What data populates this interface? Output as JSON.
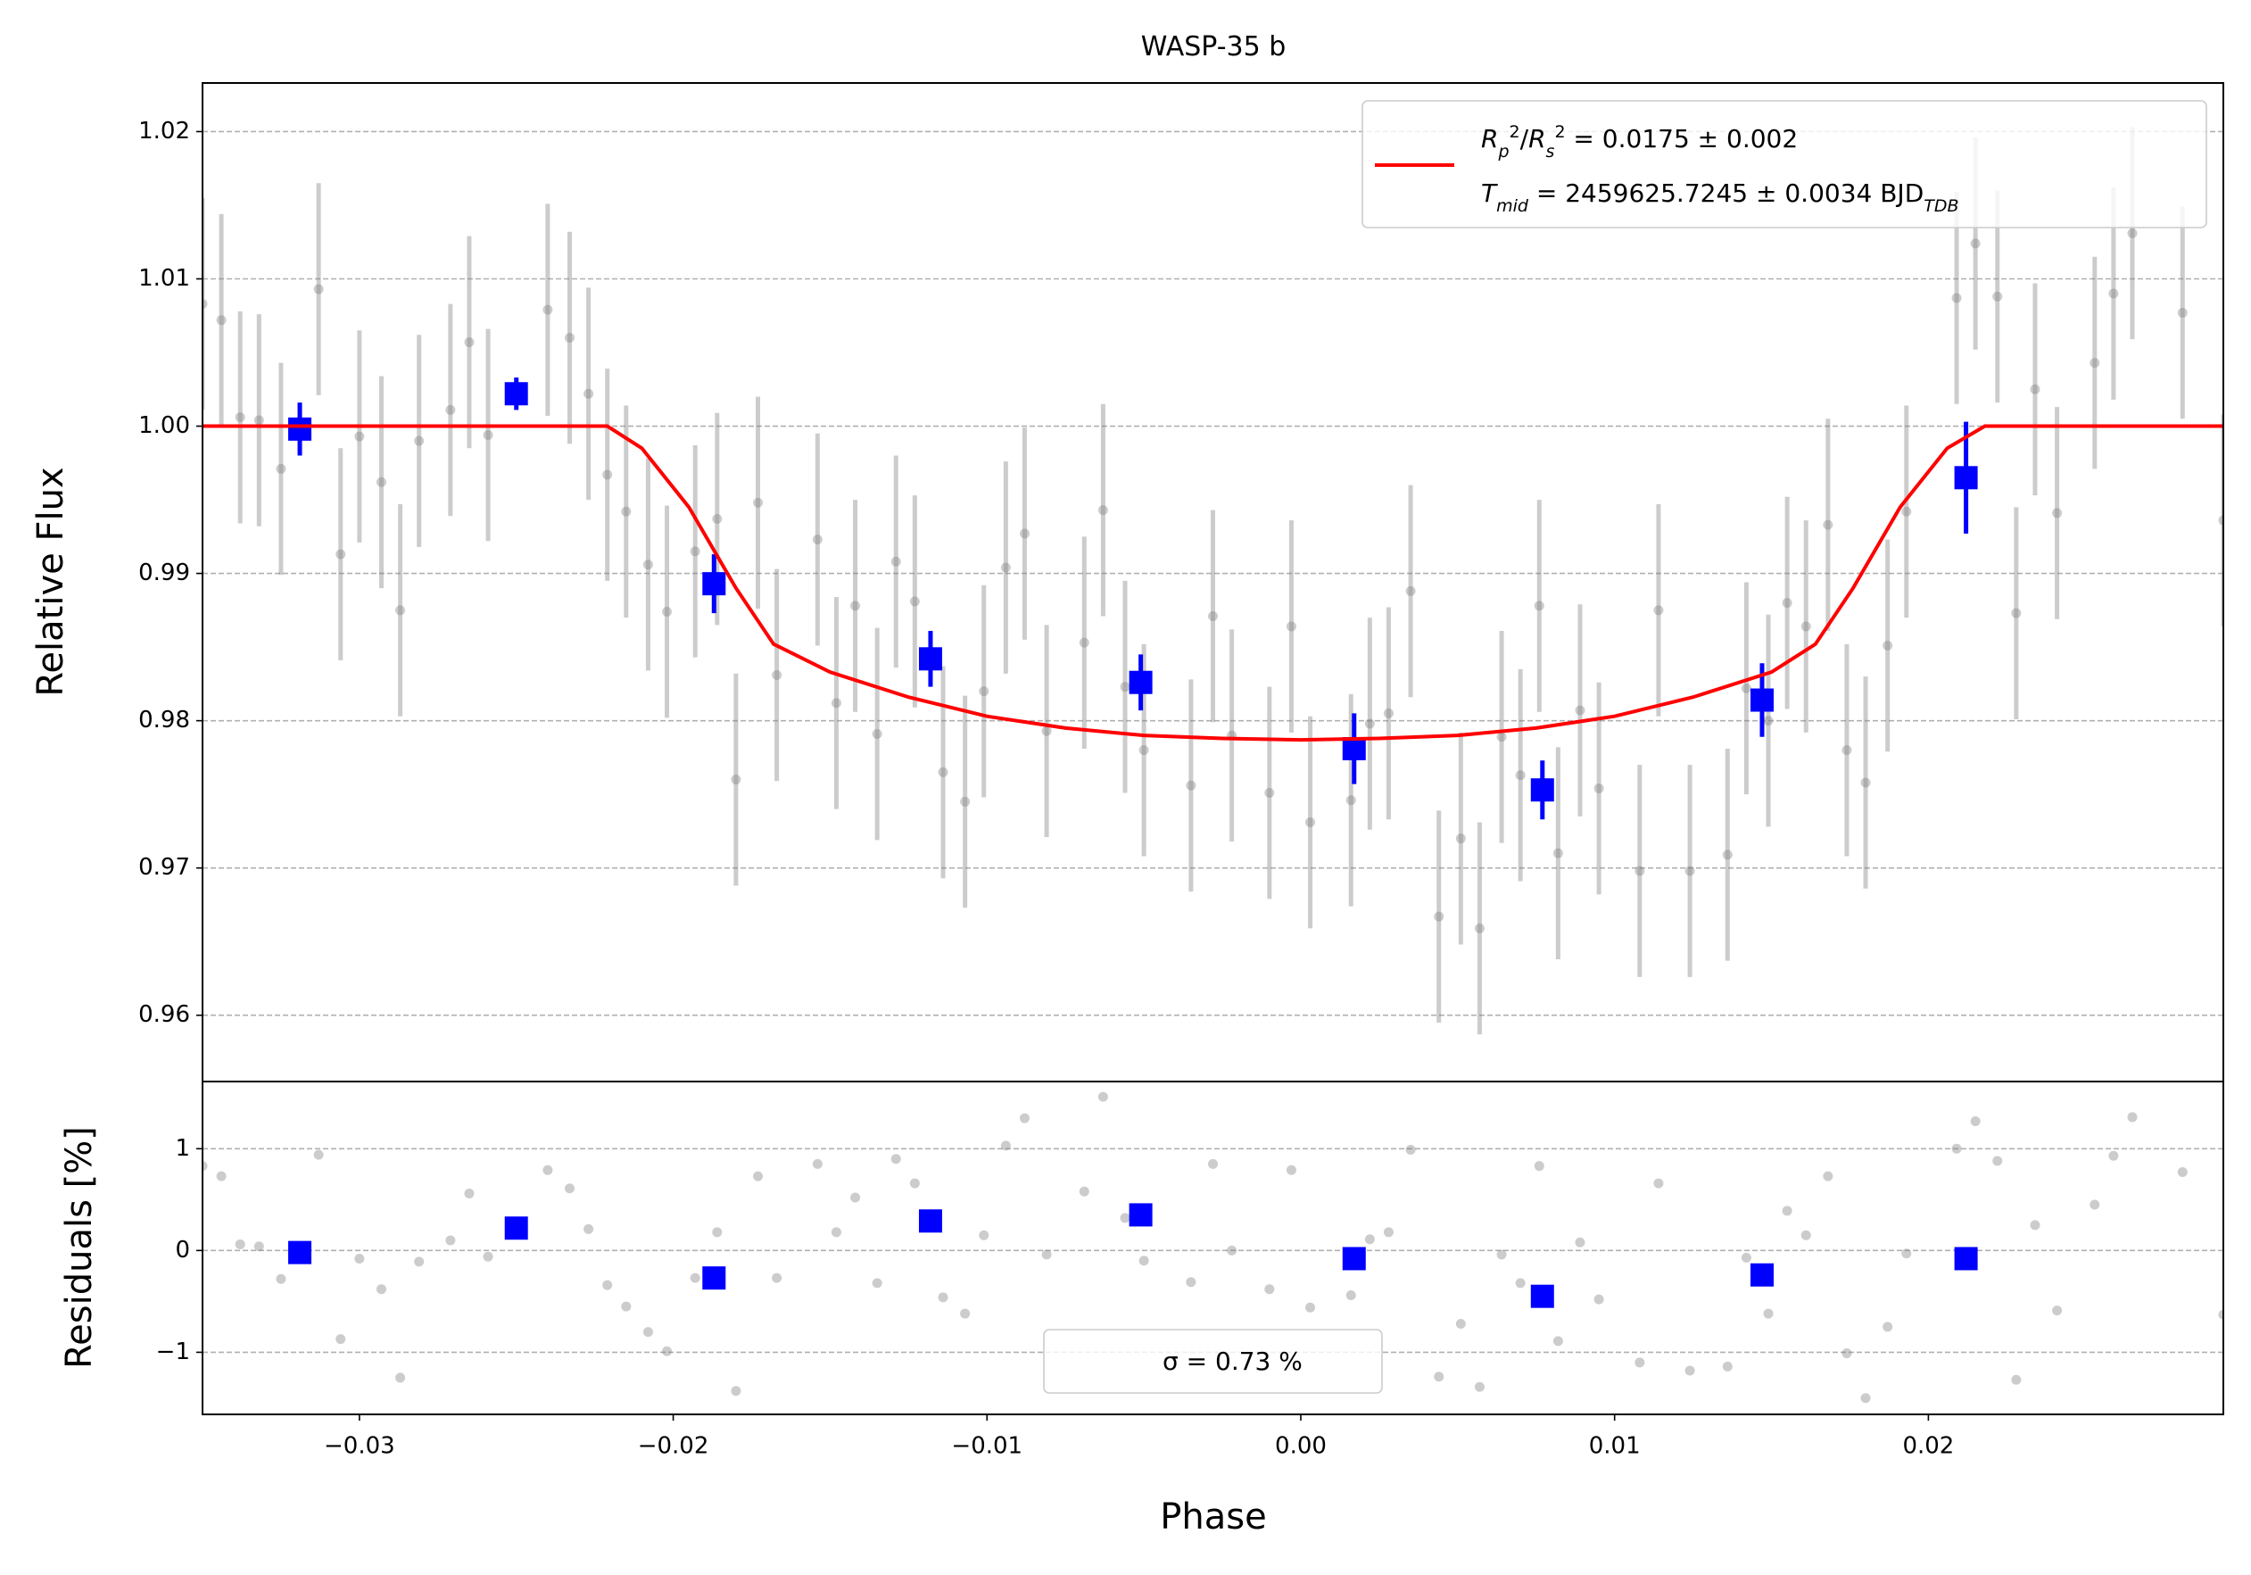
{
  "chart_data": [
    {
      "type": "scatter",
      "title": "WASP-35 b",
      "y_label": "Relative Flux",
      "xlim": [
        -0.035,
        0.0294
      ],
      "ylim": [
        0.9555,
        1.0233
      ],
      "yticks": [
        1.02,
        1.01,
        {
          "value": 1.0,
          "label": "1.00"
        },
        0.99,
        0.98,
        0.97,
        0.96
      ],
      "grid": true,
      "legend_loc": "upper right",
      "series": [
        {
          "marker": "o",
          "color": "#808080",
          "alpha": 0.4,
          "x": [
            -0.035,
            -0.0344,
            -0.0338,
            -0.0332,
            -0.0325,
            -0.0313,
            -0.0306,
            -0.03,
            -0.0293,
            -0.0287,
            -0.0281,
            -0.0271,
            -0.0265,
            -0.0259,
            -0.024,
            -0.0233,
            -0.0227,
            -0.0221,
            -0.0215,
            -0.0208,
            -0.0202,
            -0.0193,
            -0.0186,
            -0.018,
            -0.0173,
            -0.0167,
            -0.0154,
            -0.0148,
            -0.0142,
            -0.0135,
            -0.0129,
            -0.0123,
            -0.0114,
            -0.0107,
            -0.0101,
            -0.0094,
            -0.0088,
            -0.0081,
            -0.0069,
            -0.0063,
            -0.0056,
            -0.005,
            -0.0035,
            -0.0028,
            -0.0022,
            -0.001,
            -0.0003,
            0.0003,
            0.0016,
            0.0022,
            0.0028,
            0.0035,
            0.0044,
            0.0051,
            0.0057,
            0.0064,
            0.007,
            0.0076,
            0.0082,
            0.0089,
            0.0095,
            0.0108,
            0.0114,
            0.0124,
            0.0136,
            0.0142,
            0.0149,
            0.0155,
            0.0161,
            0.0168,
            0.0174,
            0.018,
            0.0187,
            0.0193,
            0.0209,
            0.0215,
            0.0222,
            0.0228,
            0.0234,
            0.0241,
            0.0253,
            0.0259,
            0.0265,
            0.0281,
            0.0294
          ],
          "values": [
            1.0083,
            1.0072,
            1.0006,
            1.0004,
            0.9971,
            1.0093,
            0.9913,
            0.9993,
            0.9962,
            0.9875,
            0.999,
            1.0011,
            1.0057,
            0.9994,
            1.0079,
            1.006,
            1.0022,
            0.9967,
            0.9942,
            0.9906,
            0.9874,
            0.9915,
            0.9937,
            0.976,
            0.9948,
            0.9831,
            0.9923,
            0.9812,
            0.9878,
            0.9791,
            0.9908,
            0.9881,
            0.9765,
            0.9745,
            0.982,
            0.9904,
            0.9927,
            0.9793,
            0.9853,
            0.9943,
            0.9823,
            0.978,
            0.9756,
            0.9871,
            0.979,
            0.9751,
            0.9864,
            0.9731,
            0.9746,
            0.9798,
            0.9805,
            0.9888,
            0.9667,
            0.972,
            0.9659,
            0.9789,
            0.9763,
            0.9878,
            0.971,
            0.9807,
            0.9754,
            0.9698,
            0.9875,
            0.9698,
            0.9709,
            0.9822,
            0.98,
            0.988,
            0.9864,
            0.9933,
            0.978,
            0.9758,
            0.9851,
            0.9942,
            1.0087,
            1.0124,
            1.0088,
            0.9873,
            1.0025,
            0.9941,
            1.0043,
            1.009,
            1.0131,
            1.0077,
            0.9936
          ],
          "errors": [
            0.0072,
            0.0072,
            0.0072,
            0.0072,
            0.0072,
            0.0072,
            0.0072,
            0.0072,
            0.0072,
            0.0072,
            0.0072,
            0.0072,
            0.0072,
            0.0072,
            0.0072,
            0.0072,
            0.0072,
            0.0072,
            0.0072,
            0.0072,
            0.0072,
            0.0072,
            0.0072,
            0.0072,
            0.0072,
            0.0072,
            0.0072,
            0.0072,
            0.0072,
            0.0072,
            0.0072,
            0.0072,
            0.0072,
            0.0072,
            0.0072,
            0.0072,
            0.0072,
            0.0072,
            0.0072,
            0.0072,
            0.0072,
            0.0072,
            0.0072,
            0.0072,
            0.0072,
            0.0072,
            0.0072,
            0.0072,
            0.0072,
            0.0072,
            0.0072,
            0.0072,
            0.0072,
            0.0072,
            0.0072,
            0.0072,
            0.0072,
            0.0072,
            0.0072,
            0.0072,
            0.0072,
            0.0072,
            0.0072,
            0.0072,
            0.0072,
            0.0072,
            0.0072,
            0.0072,
            0.0072,
            0.0072,
            0.0072,
            0.0072,
            0.0072,
            0.0072,
            0.0072,
            0.0072,
            0.0072,
            0.0072,
            0.0072,
            0.0072,
            0.0072,
            0.0072,
            0.0072,
            0.0072,
            0.0072
          ]
        },
        {
          "marker": "s",
          "color": "#0000ff",
          "alpha": 1,
          "x": [
            -0.0319,
            -0.025,
            -0.0187,
            -0.0118,
            -0.0051,
            0.0017,
            0.0077,
            0.0147,
            0.0212
          ],
          "values": [
            0.9998,
            1.0022,
            0.9893,
            0.9842,
            0.9826,
            0.9781,
            0.9753,
            0.9814,
            0.9965
          ],
          "errors": [
            0.0018,
            0.0011,
            0.002,
            0.0019,
            0.0019,
            0.0024,
            0.002,
            0.0025,
            0.0038
          ]
        },
        {
          "type": "line",
          "color": "#ff0000",
          "name": [
            [
              {
                "text": "R",
                "italic": true
              },
              {
                "text": "p",
                "italic": true,
                "script": "sub"
              },
              {
                "text": "2",
                "script": "super"
              },
              {
                "text": "/"
              },
              {
                "text": "R",
                "italic": true
              },
              {
                "text": "s",
                "italic": true,
                "script": "sub"
              },
              {
                "text": "2",
                "script": "super"
              },
              {
                "text": " = 0.0175 ± 0.002"
              }
            ],
            [
              {
                "text": "T",
                "italic": true
              },
              {
                "text": "mid",
                "italic": true,
                "script": "sub"
              },
              {
                "text": " = 2459625.7245 ± 0.0034 BJD"
              },
              {
                "text": "TDB",
                "italic": true,
                "script": "sub"
              }
            ]
          ],
          "x": [
            -0.035,
            -0.0221,
            -0.021,
            -0.0195,
            -0.018,
            -0.0168,
            -0.015,
            -0.0125,
            -0.01,
            -0.0075,
            -0.005,
            -0.0025,
            0,
            0.0025,
            0.005,
            0.0075,
            0.01,
            0.0125,
            0.015,
            0.0164,
            0.0176,
            0.0191,
            0.0206,
            0.0218,
            0.0294
          ],
          "values": [
            1,
            1,
            0.9985,
            0.9945,
            0.989,
            0.9852,
            0.9833,
            0.9816,
            0.9803,
            0.9795,
            0.979,
            0.9788,
            0.9787,
            0.9788,
            0.979,
            0.9795,
            0.9803,
            0.9816,
            0.9833,
            0.9852,
            0.989,
            0.9945,
            0.9985,
            1,
            1
          ]
        }
      ]
    },
    {
      "type": "scatter",
      "y_label": "Residuals [%]",
      "x_label": "Phase",
      "xlim": [
        -0.035,
        0.0294
      ],
      "ylim": [
        -1.61,
        1.66
      ],
      "yticks": [
        1,
        0,
        {
          "value": -1,
          "label": "−1"
        }
      ],
      "xticks": [
        {
          "value": -0.03,
          "label": "−0.03"
        },
        {
          "value": -0.02,
          "label": "−0.02"
        },
        {
          "value": -0.01,
          "label": "−0.01"
        },
        {
          "value": 0,
          "label": "0.00"
        },
        0.01,
        0.02
      ],
      "grid": true,
      "legend_loc": "lower center",
      "legend_text": "σ = 0.73 %",
      "series": [
        {
          "marker": "o",
          "color": "#808080",
          "alpha": 0.4,
          "x": [
            -0.035,
            -0.0344,
            -0.0338,
            -0.0332,
            -0.0325,
            -0.0313,
            -0.0306,
            -0.03,
            -0.0293,
            -0.0287,
            -0.0281,
            -0.0271,
            -0.0265,
            -0.0259,
            -0.024,
            -0.0233,
            -0.0227,
            -0.0221,
            -0.0215,
            -0.0208,
            -0.0202,
            -0.0193,
            -0.0186,
            -0.018,
            -0.0173,
            -0.0167,
            -0.0154,
            -0.0148,
            -0.0142,
            -0.0135,
            -0.0129,
            -0.0123,
            -0.0114,
            -0.0107,
            -0.0101,
            -0.0094,
            -0.0088,
            -0.0081,
            -0.0069,
            -0.0063,
            -0.0056,
            -0.005,
            -0.0035,
            -0.0028,
            -0.0022,
            -0.001,
            -0.0003,
            0.0003,
            0.0016,
            0.0022,
            0.0028,
            0.0035,
            0.0044,
            0.0051,
            0.0057,
            0.0064,
            0.007,
            0.0076,
            0.0082,
            0.0089,
            0.0095,
            0.0108,
            0.0114,
            0.0124,
            0.0136,
            0.0142,
            0.0149,
            0.0155,
            0.0161,
            0.0168,
            0.0174,
            0.018,
            0.0187,
            0.0193,
            0.0209,
            0.0215,
            0.0222,
            0.0228,
            0.0234,
            0.0241,
            0.0253,
            0.0259,
            0.0265,
            0.0281,
            0.0294
          ],
          "values": [
            0.83,
            0.73,
            0.06,
            0.04,
            -0.28,
            0.94,
            -0.87,
            -0.08,
            -0.38,
            -1.25,
            -0.11,
            0.1,
            0.56,
            -0.06,
            0.79,
            0.61,
            0.21,
            -0.34,
            -0.55,
            -0.8,
            -0.99,
            -0.27,
            0.18,
            -1.38,
            0.73,
            -0.27,
            0.85,
            0.18,
            0.52,
            -0.32,
            0.9,
            0.66,
            -0.46,
            -0.62,
            0.15,
            1.03,
            1.3,
            -0.04,
            0.58,
            1.51,
            0.32,
            -0.1,
            -0.31,
            0.85,
            0,
            -0.38,
            0.79,
            -0.56,
            -0.44,
            0.11,
            0.18,
            0.99,
            -1.24,
            -0.72,
            -1.34,
            -0.04,
            -0.32,
            0.83,
            -0.89,
            0.08,
            -0.48,
            -1.1,
            0.66,
            -1.18,
            -1.14,
            -0.07,
            -0.62,
            0.39,
            0.15,
            0.73,
            -1.01,
            -1.45,
            -0.75,
            -0.03,
            1,
            1.27,
            0.88,
            -1.27,
            0.25,
            -0.59,
            0.45,
            0.93,
            1.31,
            0.77,
            -0.63
          ]
        },
        {
          "marker": "s",
          "color": "#0000ff",
          "alpha": 1,
          "x": [
            -0.0319,
            -0.025,
            -0.0187,
            -0.0118,
            -0.0051,
            0.0017,
            0.0077,
            0.0147,
            0.0212
          ],
          "values": [
            -0.02,
            0.22,
            -0.27,
            0.29,
            0.35,
            -0.08,
            -0.45,
            -0.24,
            -0.08
          ]
        }
      ]
    }
  ]
}
